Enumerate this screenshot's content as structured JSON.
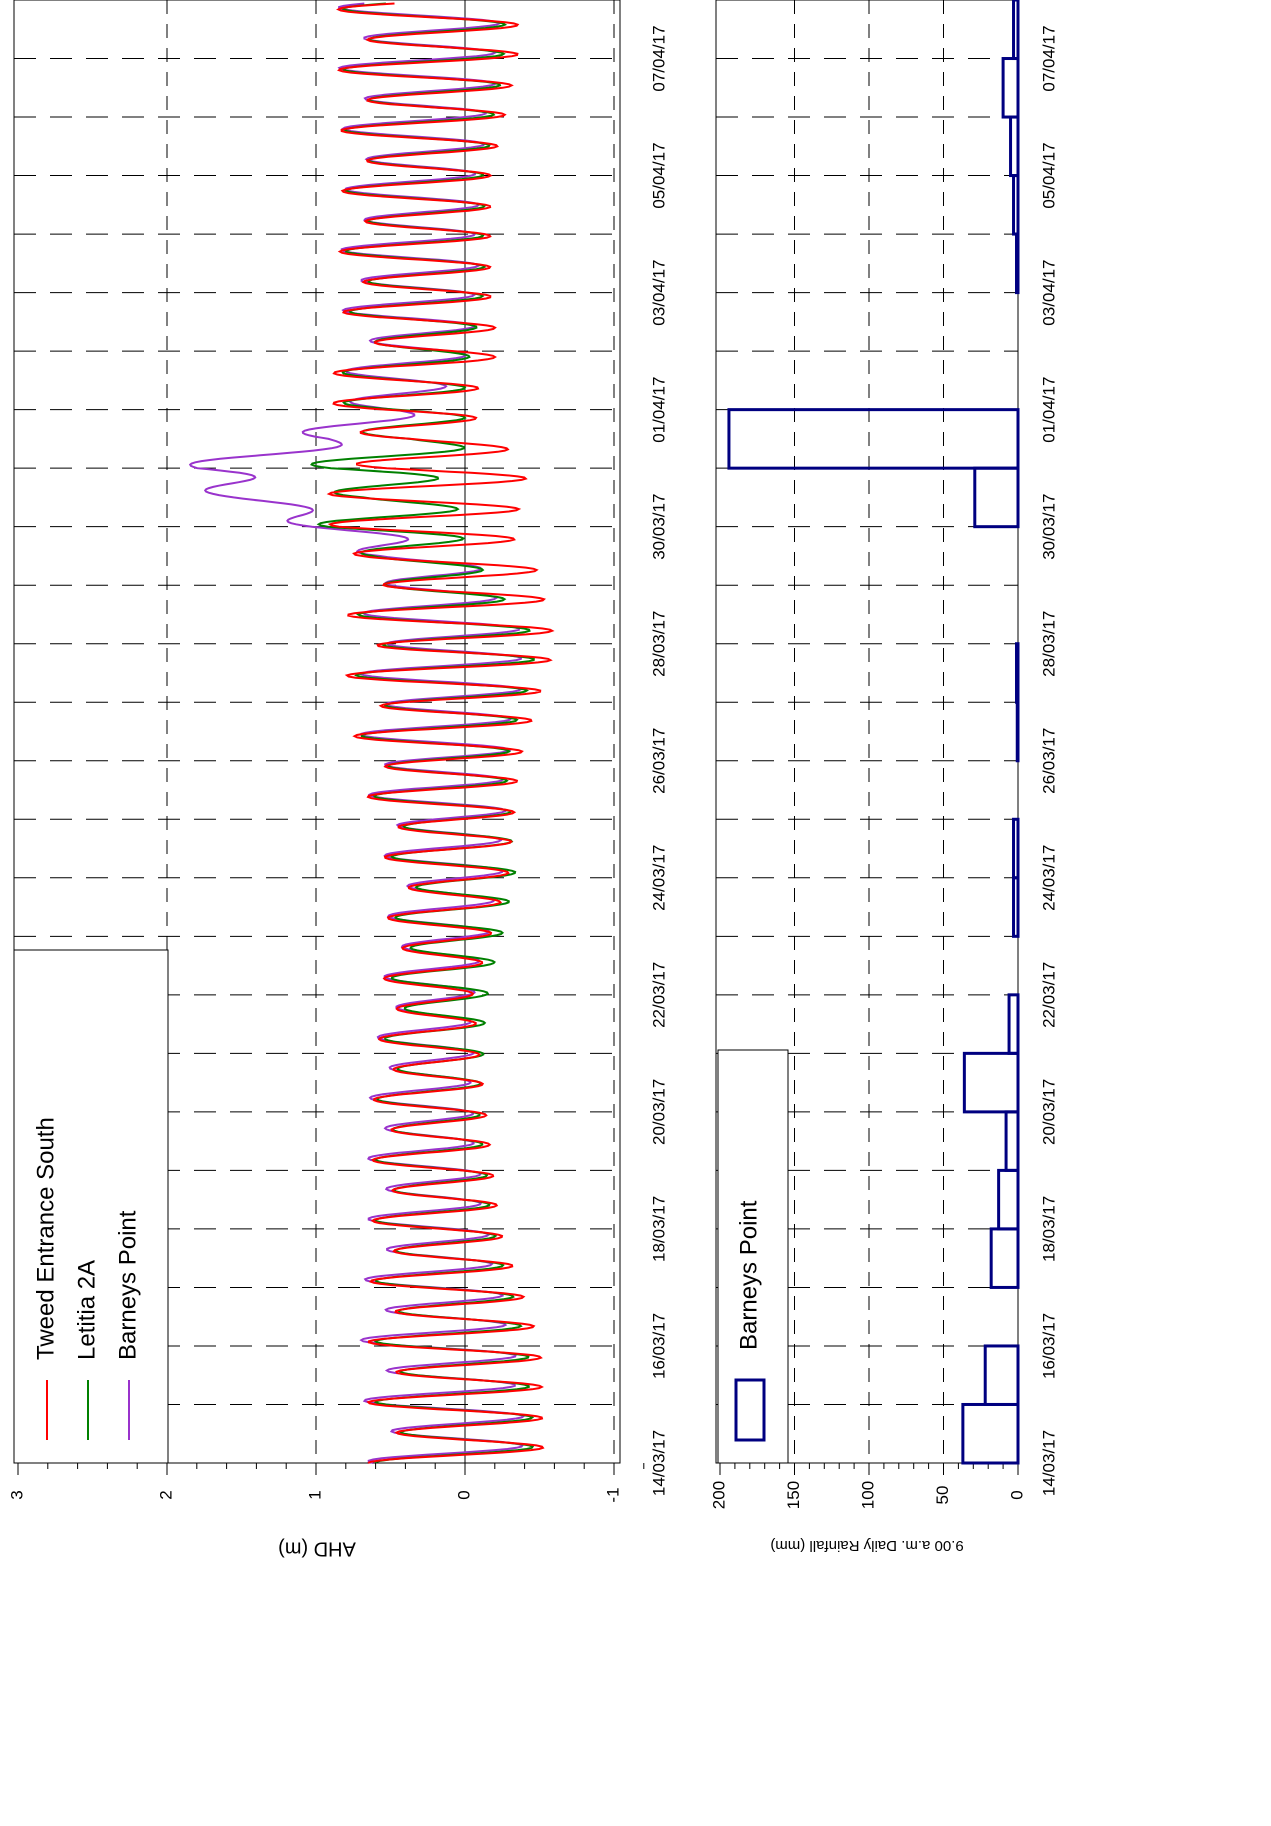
{
  "colors": {
    "tweed": "#ff0000",
    "letitia": "#008000",
    "barneys": "#9933cc",
    "rain": "#000080",
    "grid": "#000000"
  },
  "chart_data": [
    {
      "id": "water-level",
      "type": "line",
      "orientation": "rotated-90-clockwise",
      "title": "",
      "xlabel": "",
      "ylabel": "AHD (m)",
      "ylim": [
        -1.3,
        3.0
      ],
      "yticks": [
        "-1",
        "0",
        "1",
        "2",
        "3"
      ],
      "x_range": [
        "14/03/17 00:00",
        "08/04/17 00:00"
      ],
      "x_tick_labels": [
        "14/03/17",
        "16/03/17",
        "18/03/17",
        "20/03/17",
        "22/03/17",
        "24/03/17",
        "26/03/17",
        "28/03/17",
        "30/03/17",
        "01/04/17",
        "03/04/17",
        "05/04/17",
        "07/04/17"
      ],
      "grid": true,
      "legend_position": "top-left",
      "series": [
        {
          "name": "Tweed Entrance South",
          "color": "#ff0000"
        },
        {
          "name": "Letitia 2A",
          "color": "#008000"
        },
        {
          "name": "Barneys Point",
          "color": "#9933cc"
        }
      ],
      "envelope_note_days": [
        0,
        2,
        4,
        6,
        8,
        10,
        12,
        14,
        15.5,
        16,
        16.5,
        17,
        17.5,
        18,
        19,
        20,
        22,
        24
      ],
      "envelope": {
        "tweed_high": [
          0.65,
          0.65,
          0.62,
          0.62,
          0.55,
          0.5,
          0.72,
          0.82,
          0.72,
          1.15,
          0.9,
          1.0,
          0.6,
          1.1,
          0.75,
          0.85,
          0.82,
          0.85
        ],
        "tweed_low": [
          -0.62,
          -0.6,
          -0.3,
          -0.2,
          -0.1,
          -0.35,
          -0.45,
          -0.72,
          -0.55,
          -0.35,
          -0.55,
          -0.5,
          -0.3,
          -0.1,
          -0.3,
          -0.25,
          -0.25,
          -0.45
        ],
        "letitia_high": [
          0.6,
          0.6,
          0.6,
          0.6,
          0.5,
          0.45,
          0.68,
          0.75,
          0.65,
          1.2,
          0.8,
          1.3,
          0.6,
          1.0,
          0.72,
          0.8,
          0.8,
          0.82
        ],
        "letitia_low": [
          -0.55,
          -0.5,
          -0.25,
          -0.15,
          -0.2,
          -0.4,
          -0.35,
          -0.6,
          -0.1,
          -0.05,
          0.0,
          0.15,
          -0.15,
          -0.05,
          -0.1,
          -0.2,
          -0.2,
          -0.35
        ],
        "barneys_high": [
          0.65,
          0.7,
          0.65,
          0.65,
          0.55,
          0.5,
          0.7,
          0.7,
          0.65,
          1.2,
          1.65,
          2.1,
          1.15,
          0.9,
          0.75,
          0.85,
          0.8,
          0.85
        ],
        "barneys_low": [
          -0.5,
          -0.4,
          -0.2,
          -0.1,
          -0.1,
          -0.3,
          -0.35,
          -0.5,
          -0.1,
          0.6,
          1.25,
          1.4,
          0.6,
          0.2,
          -0.1,
          -0.15,
          -0.15,
          -0.3
        ]
      }
    },
    {
      "id": "daily-rainfall",
      "type": "bar",
      "orientation": "rotated-90-clockwise",
      "title": "",
      "xlabel": "",
      "ylabel": "9.00 a.m. Daily Rainfall (mm)",
      "ylim": [
        0,
        200
      ],
      "yticks": [
        "0",
        "50",
        "100",
        "150",
        "200"
      ],
      "grid": true,
      "legend_position": "top-left",
      "series": [
        {
          "name": "Barneys Point",
          "color": "#000080",
          "categories": [
            "14/03/17",
            "15/03/17",
            "16/03/17",
            "17/03/17",
            "18/03/17",
            "19/03/17",
            "20/03/17",
            "21/03/17",
            "22/03/17",
            "23/03/17",
            "24/03/17",
            "25/03/17",
            "26/03/17",
            "27/03/17",
            "28/03/17",
            "29/03/17",
            "30/03/17",
            "31/03/17",
            "01/04/17",
            "02/04/17",
            "03/04/17",
            "04/04/17",
            "05/04/17",
            "06/04/17",
            "07/04/17"
          ],
          "values": [
            37,
            22,
            0,
            18,
            13,
            8,
            36,
            6,
            0,
            3,
            3,
            0,
            0.5,
            1,
            0,
            0,
            29,
            194,
            0,
            0,
            1,
            3,
            5,
            10,
            3
          ]
        }
      ]
    }
  ]
}
